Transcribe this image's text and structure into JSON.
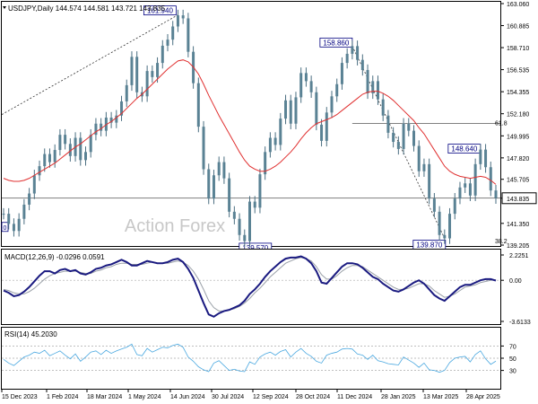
{
  "chart_data": [
    {
      "type": "line",
      "panel": "price",
      "title": "USDJPY,Daily  144.574 144.581 143.721 143.835",
      "watermark": "Action Forex",
      "ylim": [
        139.205,
        163.06
      ],
      "y_ticks": [
        "163.060",
        "160.885",
        "158.710",
        "156.535",
        "154.355",
        "152.180",
        "149.995",
        "147.820",
        "145.705",
        "143.835",
        "141.350",
        "139.205"
      ],
      "x_ticks": [
        "15 Dec 2023",
        "1 Feb 2024",
        "18 Mar 2024",
        "1 May 2024",
        "14 Jun 2024",
        "30 Jul 2024",
        "12 Sep 2024",
        "28 Oct 2024",
        "11 Dec 2024",
        "28 Jan 2025",
        "13 Mar 2025",
        "28 Apr 2025"
      ],
      "last_price": "143.835",
      "series": [
        {
          "values": [
            142.3,
            141.3,
            140.6,
            141.8,
            143.2,
            144.3,
            146.1,
            147.0,
            148.2,
            147.4,
            148.6,
            150.1,
            149.2,
            148.0,
            149.8,
            147.6,
            148.4,
            150.1,
            151.2,
            150.5,
            151.8,
            151.3,
            152.0,
            153.4,
            155.0,
            157.8,
            154.3,
            153.9,
            156.4,
            155.8,
            157.2,
            158.9,
            159.5,
            160.8,
            161.9,
            161.6,
            158.3,
            155.2,
            150.9,
            146.7,
            143.8,
            146.1,
            147.4,
            145.8,
            142.5,
            141.8,
            140.2,
            139.6,
            143.5,
            142.9,
            146.2,
            148.4,
            149.8,
            149.1,
            151.7,
            153.5,
            151.2,
            153.8,
            156.2,
            155.4,
            154.3,
            151.1,
            149.5,
            152.3,
            153.9,
            155.1,
            157.2,
            158.1,
            158.86,
            157.5,
            156.5,
            154.2,
            155.4,
            153.6,
            152.0,
            150.3,
            149.4,
            148.7,
            151.2,
            150.5,
            149.0,
            146.5,
            147.2,
            143.8,
            142.5,
            140.2,
            139.87,
            142.3,
            143.8,
            144.9,
            145.3,
            144.1,
            147.2,
            148.64,
            146.9,
            144.6,
            143.835
          ]
        },
        {
          "name": "",
          "values": [
            145.8,
            145.6,
            145.5,
            145.5,
            145.6,
            145.8,
            146.1,
            146.4,
            146.7,
            147.0,
            147.3,
            147.7,
            148.1,
            148.5,
            148.9,
            149.2,
            149.6,
            150.0,
            150.4,
            150.7,
            151.1,
            151.4,
            151.8,
            152.2,
            152.7,
            153.2,
            153.7,
            154.1,
            154.6,
            155.1,
            155.6,
            156.1,
            156.6,
            157.0,
            157.4,
            157.5,
            157.3,
            156.8,
            156.1,
            155.1,
            154.0,
            153.0,
            152.0,
            151.1,
            150.2,
            149.3,
            148.4,
            147.6,
            147.0,
            146.7,
            146.5,
            146.5,
            146.7,
            147.0,
            147.4,
            147.9,
            148.4,
            149.0,
            149.7,
            150.3,
            150.8,
            151.2,
            151.4,
            151.6,
            151.8,
            152.1,
            152.5,
            152.9,
            153.3,
            153.7,
            154.1,
            154.3,
            154.4,
            154.4,
            154.2,
            153.9,
            153.5,
            153.0,
            152.5,
            152.0,
            151.5,
            150.8,
            150.2,
            149.4,
            148.6,
            147.8,
            147.0,
            146.5,
            146.2,
            146.0,
            145.9,
            145.8,
            145.9,
            146.0,
            145.9,
            145.6,
            145.2
          ]
        }
      ],
      "price_labels": [
        "161.940",
        "158.860",
        "148.640",
        "139.870",
        "139.570"
      ],
      "level_labels": [
        "61.8",
        "38.2"
      ],
      "edge_label": "0"
    },
    {
      "type": "line",
      "panel": "macd",
      "title": "MACD(12,26,9) -0.0296 0.0591",
      "ylim": [
        -3.6133,
        2.2251
      ],
      "y_ticks": [
        "2.2251",
        "0.00",
        "-3.6133"
      ],
      "series": [
        {
          "values": [
            -0.9,
            -1.1,
            -1.4,
            -1.3,
            -1.0,
            -0.6,
            -0.1,
            0.4,
            0.8,
            0.8,
            0.6,
            0.9,
            1.0,
            0.8,
            0.9,
            0.6,
            0.5,
            0.7,
            1.0,
            1.1,
            1.3,
            1.4,
            1.6,
            1.8,
            1.6,
            1.3,
            1.3,
            1.5,
            1.7,
            1.6,
            1.5,
            1.5,
            1.6,
            1.8,
            1.9,
            1.6,
            1.0,
            0.2,
            -0.9,
            -2.0,
            -3.0,
            -3.2,
            -2.9,
            -2.7,
            -2.6,
            -2.4,
            -2.2,
            -1.8,
            -1.2,
            -0.8,
            -0.3,
            0.3,
            0.8,
            1.2,
            1.6,
            1.9,
            2.0,
            2.0,
            2.1,
            1.9,
            1.5,
            0.8,
            -0.2,
            -0.3,
            0.2,
            0.7,
            1.2,
            1.5,
            1.5,
            1.4,
            1.1,
            0.7,
            0.3,
            0.1,
            -0.3,
            -0.6,
            -0.9,
            -1.0,
            -0.8,
            -0.5,
            -0.2,
            0.0,
            -0.3,
            -0.8,
            -1.3,
            -1.6,
            -1.8,
            -1.4,
            -1.0,
            -0.6,
            -0.4,
            -0.4,
            -0.2,
            0.0,
            0.1,
            0.1,
            -0.03
          ]
        },
        {
          "values": [
            -0.8,
            -0.9,
            -1.1,
            -1.2,
            -1.2,
            -1.0,
            -0.7,
            -0.3,
            0.1,
            0.4,
            0.6,
            0.7,
            0.8,
            0.8,
            0.8,
            0.7,
            0.6,
            0.6,
            0.8,
            0.9,
            1.1,
            1.2,
            1.4,
            1.5,
            1.5,
            1.4,
            1.4,
            1.4,
            1.5,
            1.6,
            1.5,
            1.5,
            1.5,
            1.6,
            1.7,
            1.6,
            1.3,
            0.8,
            0.1,
            -0.8,
            -1.8,
            -2.4,
            -2.7,
            -2.7,
            -2.6,
            -2.5,
            -2.3,
            -2.0,
            -1.6,
            -1.1,
            -0.7,
            -0.2,
            0.3,
            0.7,
            1.1,
            1.5,
            1.7,
            1.9,
            2.0,
            1.9,
            1.7,
            1.2,
            0.5,
            0.1,
            0.1,
            0.4,
            0.8,
            1.1,
            1.3,
            1.3,
            1.2,
            0.9,
            0.6,
            0.3,
            0.0,
            -0.3,
            -0.6,
            -0.8,
            -0.8,
            -0.7,
            -0.5,
            -0.3,
            -0.3,
            -0.5,
            -0.9,
            -1.2,
            -1.5,
            -1.4,
            -1.2,
            -0.9,
            -0.6,
            -0.5,
            -0.4,
            -0.2,
            -0.1,
            0.0,
            0.06
          ]
        }
      ]
    },
    {
      "type": "line",
      "panel": "rsi",
      "title": "RSI(14) 45.2030",
      "ylim": [
        0,
        100
      ],
      "y_ticks": [
        "70",
        "50",
        "30"
      ],
      "series": [
        {
          "values": [
            48,
            42,
            38,
            45,
            52,
            55,
            60,
            58,
            63,
            54,
            58,
            62,
            55,
            49,
            57,
            45,
            52,
            60,
            62,
            56,
            63,
            58,
            62,
            65,
            68,
            73,
            56,
            54,
            66,
            60,
            64,
            68,
            67,
            71,
            73,
            68,
            52,
            45,
            36,
            31,
            28,
            42,
            46,
            38,
            30,
            32,
            29,
            28,
            44,
            40,
            52,
            57,
            60,
            55,
            61,
            64,
            52,
            60,
            66,
            58,
            53,
            45,
            42,
            55,
            58,
            60,
            65,
            66,
            65,
            57,
            55,
            48,
            55,
            46,
            44,
            41,
            40,
            39,
            52,
            47,
            42,
            35,
            42,
            31,
            30,
            27,
            30,
            43,
            50,
            52,
            53,
            44,
            56,
            62,
            49,
            40,
            45.2
          ]
        }
      ]
    }
  ]
}
